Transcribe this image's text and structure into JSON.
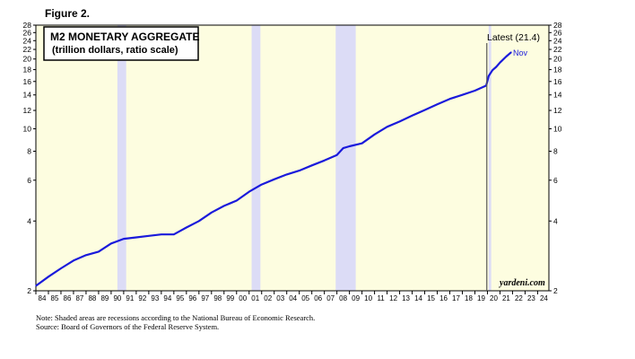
{
  "figure_label": "Figure 2.",
  "chart_data": {
    "type": "line",
    "title": "M2 MONETARY AGGREGATE",
    "subtitle": "(trillion dollars, ratio scale)",
    "y_scale": "log",
    "ylim": [
      2,
      28
    ],
    "y_ticks": [
      2,
      4,
      6,
      8,
      10,
      12,
      14,
      16,
      18,
      20,
      22,
      24,
      26,
      28
    ],
    "xlim": [
      1984,
      2024.9
    ],
    "x_tick_labels": [
      "84",
      "85",
      "86",
      "87",
      "88",
      "89",
      "90",
      "91",
      "92",
      "93",
      "94",
      "95",
      "96",
      "97",
      "98",
      "99",
      "00",
      "01",
      "02",
      "03",
      "04",
      "05",
      "06",
      "07",
      "08",
      "09",
      "10",
      "11",
      "12",
      "13",
      "14",
      "15",
      "16",
      "17",
      "18",
      "19",
      "20",
      "21",
      "22",
      "23",
      "24"
    ],
    "grid": false,
    "recessions": [
      [
        1990.5,
        1991.2
      ],
      [
        2001.2,
        2001.9
      ],
      [
        2007.9,
        2009.5
      ],
      [
        2020.1,
        2020.3
      ]
    ],
    "series": [
      {
        "color": "#1a1adb",
        "x": [
          1984.0,
          1985.0,
          1986.0,
          1987.0,
          1988.0,
          1989.0,
          1990.0,
          1991.0,
          1992.0,
          1993.0,
          1994.0,
          1995.0,
          1996.0,
          1997.0,
          1998.0,
          1999.0,
          2000.0,
          2001.0,
          2002.0,
          2003.0,
          2004.0,
          2005.0,
          2006.0,
          2007.0,
          2008.0,
          2008.5,
          2009.0,
          2010.0,
          2011.0,
          2012.0,
          2013.0,
          2014.0,
          2015.0,
          2016.0,
          2017.0,
          2018.0,
          2019.0,
          2019.9,
          2020.1,
          2020.4,
          2020.7,
          2021.0,
          2021.5,
          2021.9
        ],
        "y": [
          2.1,
          2.3,
          2.5,
          2.7,
          2.85,
          2.95,
          3.2,
          3.35,
          3.4,
          3.45,
          3.5,
          3.5,
          3.75,
          4.0,
          4.35,
          4.65,
          4.9,
          5.35,
          5.75,
          6.05,
          6.35,
          6.6,
          6.95,
          7.3,
          7.7,
          8.25,
          8.4,
          8.65,
          9.45,
          10.2,
          10.75,
          11.4,
          12.05,
          12.75,
          13.45,
          14.0,
          14.6,
          15.35,
          16.9,
          17.9,
          18.5,
          19.3,
          20.5,
          21.4
        ]
      }
    ],
    "annotations": {
      "latest": "Latest (21.4)",
      "month": "Nov",
      "watermark": "yardeni.com"
    }
  },
  "notes": [
    "Note: Shaded areas are recessions according to the National Bureau of Economic Research.",
    "Source: Board of Governors of the Federal Reserve System."
  ],
  "colors": {
    "plot_bg": "#fdfde0",
    "recession": "#dcdcf6",
    "line": "#1a1adb",
    "dark_bar": "#555555"
  }
}
